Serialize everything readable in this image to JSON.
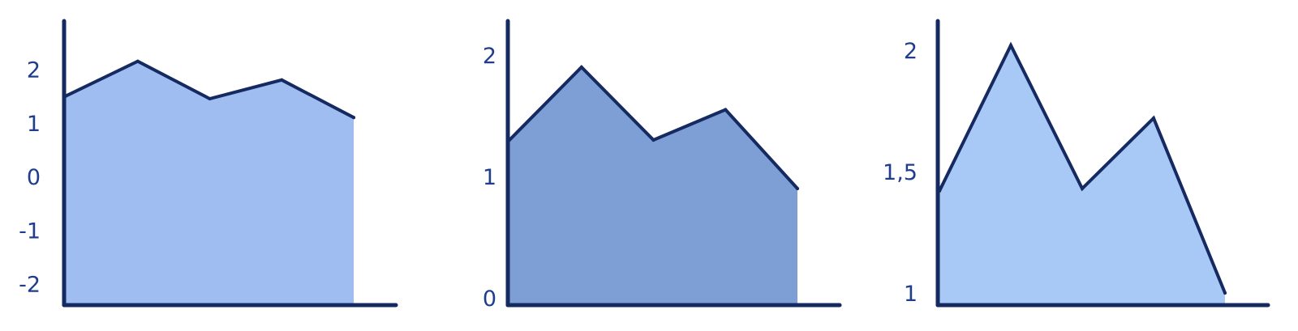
{
  "colors": {
    "axis": "#152a60",
    "line": "#152a60",
    "tick_text": "#1f3d8c"
  },
  "chart_data": [
    {
      "type": "area",
      "x": [
        0,
        1,
        2,
        3,
        4
      ],
      "values": [
        1.5,
        2.15,
        1.45,
        1.8,
        1.1
      ],
      "ylim": [
        -2.4,
        2.9
      ],
      "yticks": [
        {
          "value": -2,
          "label": "-2"
        },
        {
          "value": -1,
          "label": "-1"
        },
        {
          "value": 0,
          "label": "0"
        },
        {
          "value": 1,
          "label": "1"
        },
        {
          "value": 2,
          "label": "2"
        }
      ],
      "fill": "#a0bdf2",
      "title": "",
      "xlabel": "",
      "ylabel": ""
    },
    {
      "type": "area",
      "x": [
        0,
        1,
        2,
        3,
        4
      ],
      "values": [
        1.3,
        1.9,
        1.3,
        1.55,
        0.9
      ],
      "ylim": [
        -0.06,
        2.28
      ],
      "yticks": [
        {
          "value": 0,
          "label": "0"
        },
        {
          "value": 1,
          "label": "1"
        },
        {
          "value": 2,
          "label": "2"
        }
      ],
      "fill": "#7d9fd6",
      "title": "",
      "xlabel": "",
      "ylabel": ""
    },
    {
      "type": "area",
      "x": [
        0,
        1,
        2,
        3,
        4
      ],
      "values": [
        1.42,
        2.02,
        1.43,
        1.72,
        1.0
      ],
      "ylim": [
        0.95,
        2.12
      ],
      "yticks": [
        {
          "value": 1,
          "label": "1"
        },
        {
          "value": 1.5,
          "label": "1,5"
        },
        {
          "value": 2,
          "label": "2"
        }
      ],
      "fill": "#a8c8f5",
      "title": "",
      "xlabel": "",
      "ylabel": ""
    }
  ]
}
